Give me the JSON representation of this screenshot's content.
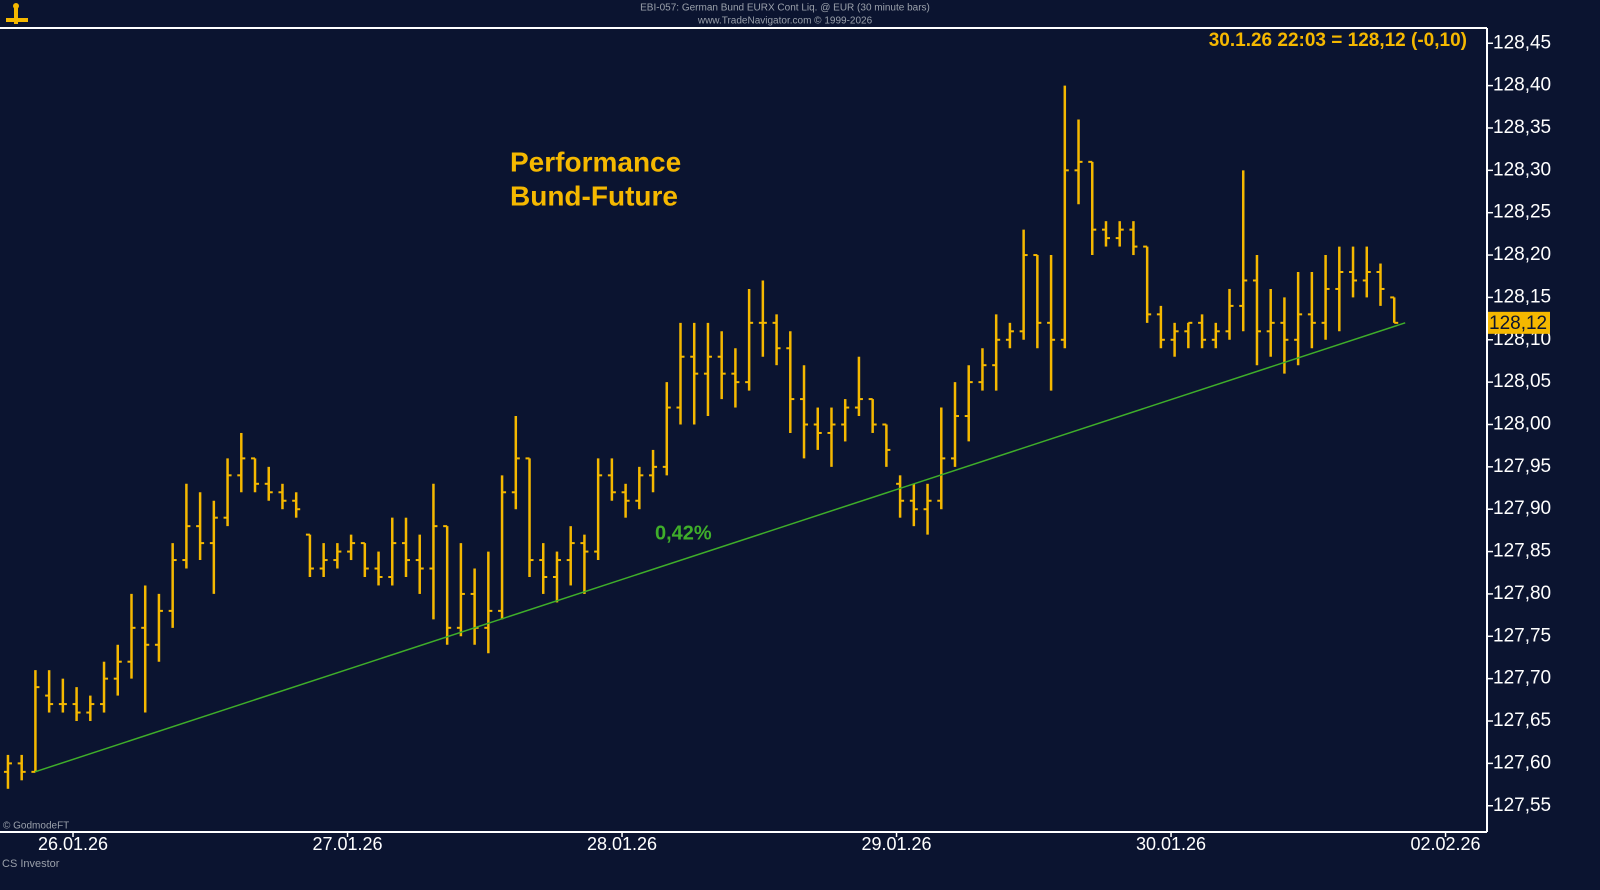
{
  "chart_data": {
    "type": "ohlc",
    "header": "EBI-057:  German Bund EURX Cont Liq. @ EUR  (30 minute bars)",
    "subheader": "www.TradeNavigator.com © 1999-2026",
    "quote": "30.1.26 22:03 = 128,12 (-0,10)",
    "title": "Performance",
    "subtitle": "Bund-Future",
    "credit": "© GodmodeFT",
    "source": "CS Investor",
    "color": "#f5b800",
    "open": [
      127.59,
      127.6,
      127.59,
      127.68,
      127.67,
      127.67,
      127.66,
      127.67,
      127.7,
      127.72,
      127.76,
      127.74,
      127.78,
      127.84,
      127.88,
      127.86,
      127.89,
      127.94,
      127.96,
      127.93,
      127.92,
      127.91,
      127.87,
      127.83,
      127.84,
      127.85,
      127.86,
      127.83,
      127.82,
      127.86,
      127.84,
      127.83,
      127.88,
      127.76,
      127.8,
      127.76,
      127.78,
      127.92,
      127.96,
      127.84,
      127.82,
      127.84,
      127.86,
      127.85,
      127.94,
      127.92,
      127.91,
      127.94,
      127.95,
      128.02,
      128.08,
      128.06,
      128.08,
      128.06,
      128.05,
      128.12,
      128.12,
      128.09,
      128.03,
      128.0,
      127.99,
      128.0,
      128.02,
      128.03,
      128.0,
      127.93,
      127.91,
      127.9,
      127.91,
      127.96,
      128.01,
      128.05,
      128.07,
      128.1,
      128.11,
      128.2,
      128.12,
      128.1,
      128.3,
      128.31,
      128.23,
      128.22,
      128.23,
      128.21,
      128.13,
      128.1,
      128.11,
      128.12,
      128.1,
      128.11,
      128.14,
      128.17,
      128.11,
      128.12,
      128.1,
      128.13,
      128.12,
      128.16,
      128.18,
      128.17,
      128.18,
      128.15
    ],
    "high": [
      127.61,
      127.61,
      127.71,
      127.71,
      127.7,
      127.69,
      127.68,
      127.72,
      127.74,
      127.8,
      127.81,
      127.8,
      127.86,
      127.93,
      127.92,
      127.91,
      127.96,
      127.99,
      127.96,
      127.95,
      127.93,
      127.92,
      127.87,
      127.86,
      127.86,
      127.87,
      127.86,
      127.85,
      127.89,
      127.89,
      127.87,
      127.93,
      127.88,
      127.86,
      127.83,
      127.85,
      127.94,
      128.01,
      127.96,
      127.86,
      127.85,
      127.88,
      127.87,
      127.96,
      127.96,
      127.93,
      127.95,
      127.97,
      128.05,
      128.12,
      128.12,
      128.12,
      128.11,
      128.09,
      128.16,
      128.17,
      128.13,
      128.11,
      128.07,
      128.02,
      128.02,
      128.03,
      128.08,
      128.03,
      128.0,
      127.94,
      127.93,
      127.93,
      128.02,
      128.05,
      128.07,
      128.09,
      128.13,
      128.12,
      128.23,
      128.2,
      128.2,
      128.4,
      128.36,
      128.31,
      128.24,
      128.24,
      128.24,
      128.21,
      128.14,
      128.12,
      128.12,
      128.13,
      128.12,
      128.16,
      128.3,
      128.2,
      128.16,
      128.15,
      128.18,
      128.18,
      128.2,
      128.21,
      128.21,
      128.21,
      128.19,
      128.15
    ],
    "low": [
      127.57,
      127.58,
      127.59,
      127.66,
      127.66,
      127.65,
      127.65,
      127.66,
      127.68,
      127.7,
      127.66,
      127.72,
      127.76,
      127.83,
      127.84,
      127.8,
      127.88,
      127.92,
      127.92,
      127.91,
      127.9,
      127.89,
      127.82,
      127.82,
      127.83,
      127.84,
      127.82,
      127.81,
      127.81,
      127.82,
      127.8,
      127.77,
      127.74,
      127.75,
      127.74,
      127.73,
      127.77,
      127.9,
      127.82,
      127.8,
      127.79,
      127.81,
      127.8,
      127.84,
      127.91,
      127.89,
      127.9,
      127.92,
      127.94,
      128.0,
      128.0,
      128.01,
      128.03,
      128.02,
      128.04,
      128.08,
      128.07,
      127.99,
      127.96,
      127.97,
      127.95,
      127.98,
      128.01,
      127.99,
      127.95,
      127.89,
      127.88,
      127.87,
      127.9,
      127.95,
      127.98,
      128.04,
      128.04,
      128.09,
      128.1,
      128.09,
      128.04,
      128.09,
      128.26,
      128.2,
      128.21,
      128.21,
      128.2,
      128.12,
      128.09,
      128.08,
      128.09,
      128.09,
      128.09,
      128.1,
      128.11,
      128.07,
      128.08,
      128.06,
      128.07,
      128.09,
      128.1,
      128.11,
      128.15,
      128.15,
      128.14,
      128.12
    ],
    "close": [
      127.6,
      127.59,
      127.69,
      127.67,
      127.67,
      127.66,
      127.67,
      127.7,
      127.72,
      127.76,
      127.74,
      127.78,
      127.84,
      127.88,
      127.86,
      127.89,
      127.94,
      127.96,
      127.93,
      127.92,
      127.91,
      127.9,
      127.83,
      127.84,
      127.85,
      127.86,
      127.83,
      127.82,
      127.86,
      127.84,
      127.83,
      127.88,
      127.76,
      127.8,
      127.76,
      127.78,
      127.92,
      127.96,
      127.84,
      127.82,
      127.84,
      127.86,
      127.85,
      127.94,
      127.92,
      127.91,
      127.94,
      127.95,
      128.02,
      128.08,
      128.06,
      128.08,
      128.06,
      128.05,
      128.12,
      128.12,
      128.09,
      128.03,
      128.0,
      127.99,
      128.0,
      128.02,
      128.03,
      128.0,
      127.97,
      127.91,
      127.9,
      127.91,
      127.96,
      128.01,
      128.05,
      128.07,
      128.1,
      128.11,
      128.2,
      128.12,
      128.1,
      128.3,
      128.31,
      128.23,
      128.22,
      128.23,
      128.21,
      128.13,
      128.1,
      128.11,
      128.12,
      128.1,
      128.11,
      128.14,
      128.17,
      128.11,
      128.12,
      128.1,
      128.13,
      128.12,
      128.16,
      128.18,
      128.17,
      128.18,
      128.16,
      128.12
    ],
    "xlim": [
      -0.58,
      107.76
    ],
    "xticks": [
      {
        "value": 4.74,
        "label": "26.01.26"
      },
      {
        "value": 24.74,
        "label": "27.01.26"
      },
      {
        "value": 44.74,
        "label": "28.01.26"
      },
      {
        "value": 64.74,
        "label": "29.01.26"
      },
      {
        "value": 84.74,
        "label": "30.01.26"
      },
      {
        "value": 104.74,
        "label": "02.02.26"
      }
    ],
    "ylim": [
      127.519,
      128.468
    ],
    "yticks": [
      {
        "value": 127.55,
        "label": "127,55"
      },
      {
        "value": 127.6,
        "label": "127,60"
      },
      {
        "value": 127.65,
        "label": "127,65"
      },
      {
        "value": 127.7,
        "label": "127,70"
      },
      {
        "value": 127.75,
        "label": "127,75"
      },
      {
        "value": 127.8,
        "label": "127,80"
      },
      {
        "value": 127.85,
        "label": "127,85"
      },
      {
        "value": 127.9,
        "label": "127,90"
      },
      {
        "value": 127.95,
        "label": "127,95"
      },
      {
        "value": 128.0,
        "label": "128,00"
      },
      {
        "value": 128.05,
        "label": "128,05"
      },
      {
        "value": 128.1,
        "label": "128,10"
      },
      {
        "value": 128.15,
        "label": "128,15"
      },
      {
        "value": 128.2,
        "label": "128,20"
      },
      {
        "value": 128.25,
        "label": "128,25"
      },
      {
        "value": 128.3,
        "label": "128,30"
      },
      {
        "value": 128.35,
        "label": "128,35"
      },
      {
        "value": 128.4,
        "label": "128,40"
      },
      {
        "value": 128.45,
        "label": "128,45"
      }
    ],
    "last_price": {
      "value": 128.12,
      "label": "128,12"
    },
    "trendline": {
      "label": "0,42%",
      "color": "#3fae2a",
      "x": [
        1.97,
        101.8
      ],
      "y": [
        127.59,
        128.12
      ]
    }
  }
}
